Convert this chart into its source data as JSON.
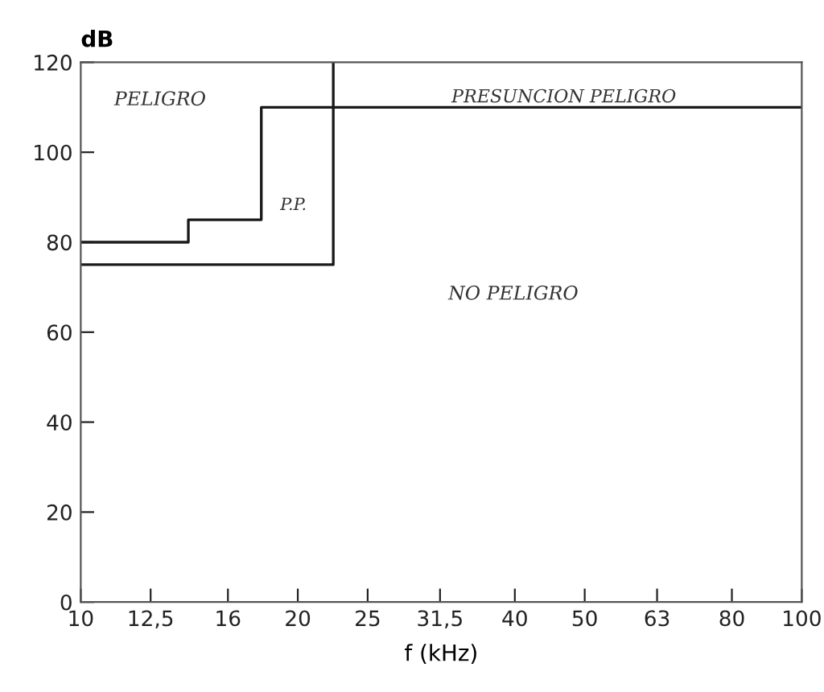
{
  "chart_data": {
    "type": "line",
    "xlabel": "f (kHz)",
    "ylabel": "dB",
    "log": "x",
    "xlim": [
      10,
      100
    ],
    "xticks": [
      10,
      {
        "value": 12.5,
        "label": "12,5"
      },
      16,
      20,
      25,
      {
        "value": 31.5,
        "label": "31,5"
      },
      40,
      50,
      63,
      80,
      100
    ],
    "ylim": [
      0,
      120
    ],
    "yticks": [
      0,
      20,
      40,
      60,
      80,
      100,
      120
    ],
    "grid": false,
    "marker": "none",
    "line_style": "solid",
    "series": [
      {
        "color": "#1a1a1a",
        "x": [
          10,
          14.1,
          14.1,
          17.8,
          17.8,
          100
        ],
        "values": [
          80,
          80,
          85,
          85,
          110,
          110
        ]
      },
      {
        "color": "#1a1a1a",
        "x": [
          10,
          22.4,
          22.4
        ],
        "values": [
          75,
          75,
          120
        ]
      }
    ],
    "annotations": [
      "PELIGRO",
      "PRESUNCION PELIGRO",
      "P.P.",
      "NO PELIGRO"
    ]
  }
}
